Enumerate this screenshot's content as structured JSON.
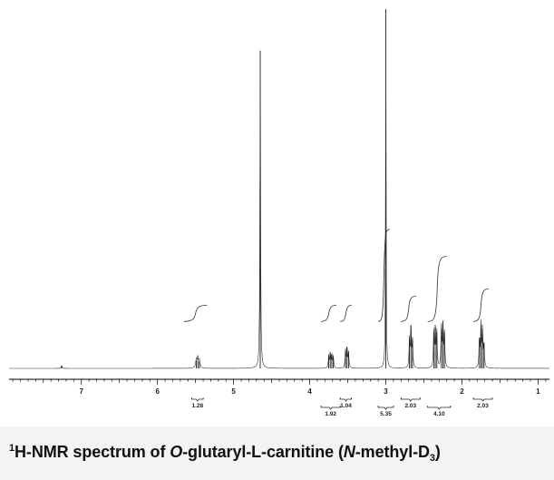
{
  "caption": {
    "sup": "1",
    "part1": "H-NMR spectrum of ",
    "italic1": "O",
    "part2": "-glutaryl-L-carnitine (",
    "italic2": "N",
    "part3": "-methyl-D",
    "sub": "3",
    "part4": ")"
  },
  "chart_data": {
    "type": "line",
    "title": "1H-NMR spectrum of O-glutaryl-L-carnitine (N-methyl-D3)",
    "xlabel": "",
    "ylabel": "",
    "xlim": [
      7.95,
      0.85
    ],
    "x_reversed": true,
    "ylim": [
      0,
      1.0
    ],
    "x_ticks": [
      7,
      6,
      5,
      4,
      3,
      2,
      1
    ],
    "grid": false,
    "peaks": [
      {
        "shift": 7.26,
        "height": 0.008,
        "width": 0.006
      },
      {
        "shift": 5.49,
        "height": 0.022,
        "width": 0.01
      },
      {
        "shift": 5.47,
        "height": 0.028,
        "width": 0.01
      },
      {
        "shift": 5.45,
        "height": 0.02,
        "width": 0.01
      },
      {
        "shift": 4.65,
        "height": 0.88,
        "width": 0.005
      },
      {
        "shift": 3.75,
        "height": 0.035,
        "width": 0.006
      },
      {
        "shift": 3.73,
        "height": 0.042,
        "width": 0.006
      },
      {
        "shift": 3.71,
        "height": 0.04,
        "width": 0.006
      },
      {
        "shift": 3.69,
        "height": 0.032,
        "width": 0.006
      },
      {
        "shift": 3.53,
        "height": 0.05,
        "width": 0.006
      },
      {
        "shift": 3.51,
        "height": 0.06,
        "width": 0.006
      },
      {
        "shift": 3.49,
        "height": 0.045,
        "width": 0.006
      },
      {
        "shift": 3.0,
        "height": 0.995,
        "width": 0.004
      },
      {
        "shift": 2.69,
        "height": 0.08,
        "width": 0.006
      },
      {
        "shift": 2.67,
        "height": 0.12,
        "width": 0.006
      },
      {
        "shift": 2.65,
        "height": 0.08,
        "width": 0.006
      },
      {
        "shift": 2.37,
        "height": 0.1,
        "width": 0.006
      },
      {
        "shift": 2.35,
        "height": 0.12,
        "width": 0.006
      },
      {
        "shift": 2.33,
        "height": 0.1,
        "width": 0.006
      },
      {
        "shift": 2.27,
        "height": 0.11,
        "width": 0.006
      },
      {
        "shift": 2.25,
        "height": 0.13,
        "width": 0.006
      },
      {
        "shift": 2.23,
        "height": 0.1,
        "width": 0.006
      },
      {
        "shift": 1.77,
        "height": 0.085,
        "width": 0.006
      },
      {
        "shift": 1.75,
        "height": 0.12,
        "width": 0.006
      },
      {
        "shift": 1.73,
        "height": 0.11,
        "width": 0.006
      },
      {
        "shift": 1.71,
        "height": 0.07,
        "width": 0.006
      }
    ],
    "integral_curves": [
      {
        "x_start": 5.65,
        "x_end": 5.35,
        "y_base": 0.13,
        "y_top": 0.175
      },
      {
        "x_start": 3.85,
        "x_end": 3.65,
        "y_base": 0.13,
        "y_top": 0.175
      },
      {
        "x_start": 3.6,
        "x_end": 3.45,
        "y_base": 0.13,
        "y_top": 0.175
      },
      {
        "x_start": 3.1,
        "x_end": 2.95,
        "y_base": 0.13,
        "y_top": 0.385
      },
      {
        "x_start": 2.8,
        "x_end": 2.6,
        "y_base": 0.13,
        "y_top": 0.2
      },
      {
        "x_start": 2.45,
        "x_end": 2.2,
        "y_base": 0.13,
        "y_top": 0.31
      },
      {
        "x_start": 1.85,
        "x_end": 1.65,
        "y_base": 0.13,
        "y_top": 0.22
      }
    ],
    "integrations": [
      {
        "from": 5.55,
        "to": 5.4,
        "value": "1.28",
        "row": 0
      },
      {
        "from": 3.85,
        "to": 3.6,
        "value": "1.92",
        "row": 1
      },
      {
        "from": 3.6,
        "to": 3.45,
        "value": "1.04",
        "row": 0
      },
      {
        "from": 3.1,
        "to": 2.9,
        "value": "5.35",
        "row": 1
      },
      {
        "from": 2.8,
        "to": 2.55,
        "value": "2.03",
        "row": 0
      },
      {
        "from": 2.45,
        "to": 2.15,
        "value": "4.10",
        "row": 1
      },
      {
        "from": 1.85,
        "to": 1.6,
        "value": "2.03",
        "row": 0
      }
    ]
  }
}
